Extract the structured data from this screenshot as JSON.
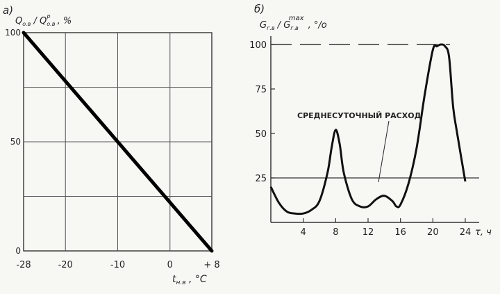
{
  "chart_data": [
    {
      "panel_label": "а)",
      "type": "line",
      "ylabel": {
        "main": "Q",
        "sub": "o.в",
        "slash": " / Q",
        "sub2": "o.в",
        "sup2": "р",
        "unit": " , %"
      },
      "xlabel": {
        "main": "t",
        "sub": "н.в",
        "unit": " , °C"
      },
      "xlim": [
        -28,
        8
      ],
      "ylim": [
        0,
        100
      ],
      "x_ticks": [
        -28,
        -20,
        -10,
        0,
        8
      ],
      "x_tick_labels": [
        "-28",
        "-20",
        "-10",
        "0",
        "+ 8"
      ],
      "y_grid": [
        0,
        25,
        50,
        75,
        100
      ],
      "y_tick_labels": [
        {
          "value": 100,
          "text": "100"
        },
        {
          "value": 50,
          "text": "50"
        },
        {
          "value": 0,
          "text": "0"
        }
      ],
      "grid": true,
      "series": [
        {
          "x": [
            -28,
            8
          ],
          "y": [
            100,
            0
          ]
        }
      ]
    },
    {
      "panel_label": "б)",
      "type": "line",
      "ylabel": {
        "main": "G",
        "sub": "г.в",
        "slash": " / G",
        "sub2": "г.в",
        "sup2": "max",
        "unit": " , °/o"
      },
      "xlabel": {
        "main": "τ",
        "unit": ", ч"
      },
      "xlim": [
        0,
        25
      ],
      "ylim": [
        0,
        100
      ],
      "x_ticks": [
        4,
        8,
        12,
        16,
        20,
        24
      ],
      "x_tick_labels": [
        "4",
        "8",
        "12",
        "16",
        "20",
        "24"
      ],
      "y_ticks": [
        25,
        50,
        75,
        100
      ],
      "y_tick_labels": [
        "25",
        "50",
        "75",
        "100"
      ],
      "grid": false,
      "annotation": "СРЕДНЕСУТОЧНЫЙ РАСХОД",
      "reference_lines": {
        "average": 25,
        "max_dashed": 100
      },
      "series": [
        {
          "x": [
            0,
            1,
            2,
            3,
            4,
            5,
            6,
            7,
            7.5,
            8,
            8.5,
            9,
            10,
            11,
            12,
            13,
            14,
            15,
            15.5,
            16,
            17,
            18,
            19,
            20,
            20.5,
            21,
            21.5,
            22,
            22.5,
            23,
            24
          ],
          "y": [
            20,
            11,
            6,
            5,
            5,
            7,
            12,
            28,
            42,
            52,
            44,
            28,
            13,
            9,
            9,
            13,
            15,
            12,
            9,
            10,
            22,
            42,
            72,
            97,
            99,
            100,
            99,
            93,
            65,
            50,
            23
          ]
        }
      ]
    }
  ]
}
